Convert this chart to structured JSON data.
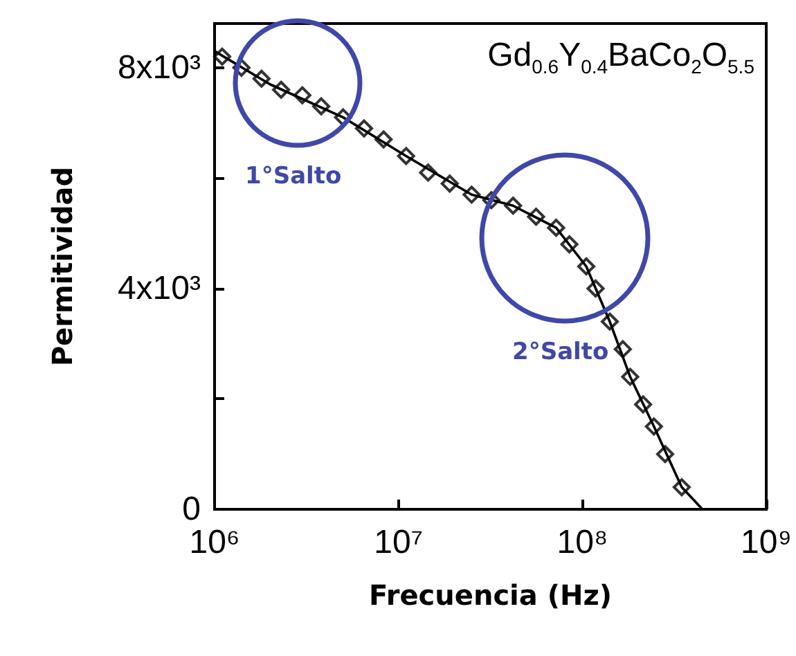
{
  "chart_data": {
    "type": "scatter",
    "xlabel": "Frecuencia (Hz)",
    "ylabel": "Permitividad",
    "log": "x",
    "marker": "diamond",
    "grid": false,
    "xlim": [
      1000000,
      1000000000
    ],
    "xticks": [
      {
        "value": 1000000,
        "label": "10⁶"
      },
      {
        "value": 10000000,
        "label": "10⁷"
      },
      {
        "value": 100000000,
        "label": "10⁸"
      },
      {
        "value": 1000000000,
        "label": "10⁹"
      }
    ],
    "ylim": [
      0,
      8800
    ],
    "yticks": [
      {
        "value": 0,
        "label": "0"
      },
      {
        "value": 2000,
        "label": null
      },
      {
        "value": 4000,
        "label": "4x10³"
      },
      {
        "value": 6000,
        "label": null
      },
      {
        "value": 8000,
        "label": "8x10³"
      }
    ],
    "series": [
      {
        "color": "#000000",
        "x": [
          1100000,
          1400000,
          1800000,
          2300000,
          3000000,
          3800000,
          5000000,
          6500000,
          8300000,
          11000000,
          14500000,
          19000000,
          25000000,
          32000000,
          42000000,
          56000000,
          72000000,
          85000000,
          105000000,
          118000000,
          141000000,
          166000000,
          182000000,
          214000000,
          245000000,
          282000000,
          347000000
        ],
        "values": [
          8200,
          8000,
          7800,
          7600,
          7500,
          7300,
          7100,
          6900,
          6700,
          6400,
          6100,
          5900,
          5700,
          5600,
          5500,
          5300,
          5100,
          4800,
          4400,
          4000,
          3400,
          2900,
          2400,
          1900,
          1500,
          1000,
          400
        ]
      },
      {
        "type": "line",
        "color": "#000000",
        "marker": "none",
        "x": [
          1000000,
          2000000,
          5000000,
          11000000,
          25000000,
          42000000,
          72000000,
          105000000,
          141000000,
          182000000,
          245000000,
          347000000,
          450000000
        ],
        "values": [
          8300,
          7700,
          7100,
          6400,
          5700,
          5500,
          5100,
          4400,
          3400,
          2400,
          1500,
          400,
          0
        ]
      }
    ],
    "annotations": [
      "Gd$_{0.6}$Y$_{0.4}$BaCo$_{2}$O$_{5.5}$",
      "1°Salto",
      "2°Salto"
    ]
  }
}
